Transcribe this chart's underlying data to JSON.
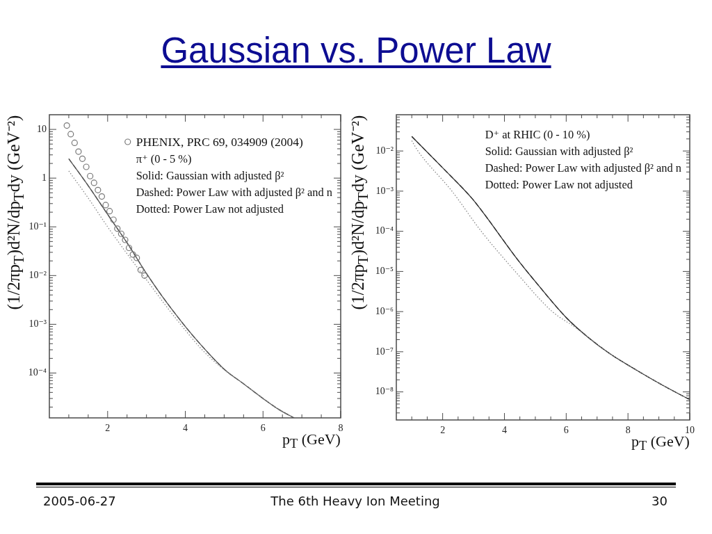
{
  "chart_data": [
    {
      "type": "line",
      "title": "Gaussian vs. Power Law",
      "xlabel": "p$_{T}$ (GeV)",
      "ylabel": "(1/2πp$_{T}$)d²N/dp$_{T}$dy (GeV⁻²)",
      "log": true,
      "legend": "top right",
      "xlim": [
        0.5,
        8
      ],
      "ylim": [
        1.2e-05,
        20
      ],
      "xticks": [
        {
          "value": 1,
          "label": null
        },
        {
          "value": 1.5,
          "label": null
        },
        2,
        {
          "value": 2.5,
          "label": null
        },
        {
          "value": 3,
          "label": null
        },
        {
          "value": 3.5,
          "label": null
        },
        4,
        {
          "value": 4.5,
          "label": null
        },
        {
          "value": 5,
          "label": null
        },
        {
          "value": 5.5,
          "label": null
        },
        6,
        {
          "value": 6.5,
          "label": null
        },
        {
          "value": 7,
          "label": null
        },
        {
          "value": 7.5,
          "label": null
        },
        8
      ],
      "yticks": [
        {
          "value": 2e-05,
          "label": null
        },
        {
          "value": 3e-05,
          "label": null
        },
        {
          "value": 4e-05,
          "label": null
        },
        {
          "value": 5e-05,
          "label": null
        },
        {
          "value": 6e-05,
          "label": null
        },
        {
          "value": 7e-05,
          "label": null
        },
        {
          "value": 8e-05,
          "label": null
        },
        {
          "value": 9e-05,
          "label": null
        },
        {
          "value": 0.0001,
          "label": "10⁻⁴"
        },
        {
          "value": 0.0002,
          "label": null
        },
        {
          "value": 0.0003,
          "label": null
        },
        {
          "value": 0.0004,
          "label": null
        },
        {
          "value": 0.0005,
          "label": null
        },
        {
          "value": 0.0006,
          "label": null
        },
        {
          "value": 0.0007,
          "label": null
        },
        {
          "value": 0.0008,
          "label": null
        },
        {
          "value": 0.0009,
          "label": null
        },
        {
          "value": 0.001,
          "label": "10⁻³"
        },
        {
          "value": 0.002,
          "label": null
        },
        {
          "value": 0.003,
          "label": null
        },
        {
          "value": 0.004,
          "label": null
        },
        {
          "value": 0.005,
          "label": null
        },
        {
          "value": 0.006,
          "label": null
        },
        {
          "value": 0.007,
          "label": null
        },
        {
          "value": 0.008,
          "label": null
        },
        {
          "value": 0.009,
          "label": null
        },
        {
          "value": 0.01,
          "label": "10⁻²"
        },
        {
          "value": 0.02,
          "label": null
        },
        {
          "value": 0.03,
          "label": null
        },
        {
          "value": 0.04,
          "label": null
        },
        {
          "value": 0.05,
          "label": null
        },
        {
          "value": 0.06,
          "label": null
        },
        {
          "value": 0.07,
          "label": null
        },
        {
          "value": 0.08,
          "label": null
        },
        {
          "value": 0.09,
          "label": null
        },
        {
          "value": 0.1,
          "label": "10⁻¹"
        },
        {
          "value": 0.2,
          "label": null
        },
        {
          "value": 0.3,
          "label": null
        },
        {
          "value": 0.4,
          "label": null
        },
        {
          "value": 0.5,
          "label": null
        },
        {
          "value": 0.6,
          "label": null
        },
        {
          "value": 0.7,
          "label": null
        },
        {
          "value": 0.8,
          "label": null
        },
        {
          "value": 0.9,
          "label": null
        },
        1,
        {
          "value": 2,
          "label": null
        },
        {
          "value": 3,
          "label": null
        },
        {
          "value": 4,
          "label": null
        },
        {
          "value": 5,
          "label": null
        },
        {
          "value": 6,
          "label": null
        },
        {
          "value": 7,
          "label": null
        },
        {
          "value": 8,
          "label": null
        },
        {
          "value": 9,
          "label": null
        },
        10
      ],
      "annotations": [
        "π⁺ (0 - 5 %)",
        "Solid: Gaussian with adjusted β²",
        "Dashed: Power Law with adjusted β² and n",
        "Dotted: Power Law not adjusted"
      ],
      "series": [
        {
          "type": "scatter",
          "name": "PHENIX, PRC 69, 034909 (2004)",
          "color": "#777777",
          "marker": "circle",
          "x": [
            0.95,
            1.05,
            1.15,
            1.25,
            1.35,
            1.45,
            1.55,
            1.65,
            1.75,
            1.85,
            1.95,
            2.05,
            2.15,
            2.25,
            2.35,
            2.45,
            2.55,
            2.65,
            2.75,
            2.85,
            2.95
          ],
          "values": [
            12,
            8.0,
            5.3,
            3.5,
            2.5,
            1.7,
            1.1,
            0.8,
            0.57,
            0.42,
            0.28,
            0.21,
            0.14,
            0.092,
            0.072,
            0.054,
            0.037,
            0.027,
            0.023,
            0.013,
            0.01
          ]
        },
        {
          "type": "line",
          "color": "#555555",
          "line_style": "solid",
          "x": [
            1.0,
            1.5,
            2.0,
            2.5,
            3.0,
            3.4,
            4.0,
            4.4,
            5.0,
            5.5,
            6.0,
            6.4,
            6.8
          ],
          "values": [
            2.5,
            0.7,
            0.18,
            0.047,
            0.011,
            0.0038,
            0.0009,
            0.00038,
            0.00012,
            6e-05,
            3e-05,
            1.8e-05,
            1.2e-05
          ]
        },
        {
          "type": "line",
          "color": "#555555",
          "line_style": "dashed",
          "x": [
            1.0,
            1.5,
            2.0,
            2.5,
            3.0,
            3.4,
            4.0,
            4.4,
            5.0,
            5.5,
            6.0,
            6.4,
            6.8
          ],
          "values": [
            2.5,
            0.7,
            0.18,
            0.047,
            0.011,
            0.0038,
            0.0009,
            0.00038,
            0.00012,
            6e-05,
            3e-05,
            1.8e-05,
            1.2e-05
          ]
        },
        {
          "type": "line",
          "color": "#8a8a8a",
          "line_style": "dotted",
          "x": [
            1.0,
            1.5,
            2.0,
            2.5,
            3.0,
            3.5,
            3.9,
            4.4,
            4.9,
            5.5,
            6.0,
            6.4,
            6.8
          ],
          "values": [
            1.4,
            0.39,
            0.1,
            0.028,
            0.0082,
            0.0024,
            0.00095,
            0.00032,
            0.000135,
            6e-05,
            3e-05,
            1.8e-05,
            1.2e-05
          ]
        }
      ]
    },
    {
      "type": "line",
      "xlabel": "p$_{T}$ (GeV)",
      "ylabel": "(1/2πp$_{T}$)d²N/dp$_{T}$dy (GeV⁻²)",
      "log": true,
      "xlim": [
        0.5,
        10
      ],
      "ylim": [
        2e-09,
        0.08
      ],
      "xticks": [
        {
          "value": 1,
          "label": null
        },
        {
          "value": 1.5,
          "label": null
        },
        2,
        {
          "value": 2.5,
          "label": null
        },
        {
          "value": 3,
          "label": null
        },
        {
          "value": 3.5,
          "label": null
        },
        4,
        {
          "value": 4.5,
          "label": null
        },
        {
          "value": 5,
          "label": null
        },
        {
          "value": 5.5,
          "label": null
        },
        6,
        {
          "value": 6.5,
          "label": null
        },
        {
          "value": 7,
          "label": null
        },
        {
          "value": 7.5,
          "label": null
        },
        8,
        {
          "value": 8.5,
          "label": null
        },
        {
          "value": 9,
          "label": null
        },
        {
          "value": 9.5,
          "label": null
        },
        10
      ],
      "yticks": [
        {
          "value": 3e-09,
          "label": null
        },
        {
          "value": 4e-09,
          "label": null
        },
        {
          "value": 5e-09,
          "label": null
        },
        {
          "value": 6e-09,
          "label": null
        },
        {
          "value": 7e-09,
          "label": null
        },
        {
          "value": 8e-09,
          "label": null
        },
        {
          "value": 9e-09,
          "label": null
        },
        {
          "value": 1e-08,
          "label": "10⁻⁸"
        },
        {
          "value": 2e-08,
          "label": null
        },
        {
          "value": 3e-08,
          "label": null
        },
        {
          "value": 4e-08,
          "label": null
        },
        {
          "value": 5e-08,
          "label": null
        },
        {
          "value": 6e-08,
          "label": null
        },
        {
          "value": 7e-08,
          "label": null
        },
        {
          "value": 8e-08,
          "label": null
        },
        {
          "value": 9e-08,
          "label": null
        },
        {
          "value": 1e-07,
          "label": "10⁻⁷"
        },
        {
          "value": 2e-07,
          "label": null
        },
        {
          "value": 3e-07,
          "label": null
        },
        {
          "value": 4e-07,
          "label": null
        },
        {
          "value": 5e-07,
          "label": null
        },
        {
          "value": 6e-07,
          "label": null
        },
        {
          "value": 7e-07,
          "label": null
        },
        {
          "value": 8e-07,
          "label": null
        },
        {
          "value": 9e-07,
          "label": null
        },
        {
          "value": 1e-06,
          "label": "10⁻⁶"
        },
        {
          "value": 2e-06,
          "label": null
        },
        {
          "value": 3e-06,
          "label": null
        },
        {
          "value": 4e-06,
          "label": null
        },
        {
          "value": 5e-06,
          "label": null
        },
        {
          "value": 6e-06,
          "label": null
        },
        {
          "value": 7e-06,
          "label": null
        },
        {
          "value": 8e-06,
          "label": null
        },
        {
          "value": 9e-06,
          "label": null
        },
        {
          "value": 1e-05,
          "label": "10⁻⁵"
        },
        {
          "value": 2e-05,
          "label": null
        },
        {
          "value": 3e-05,
          "label": null
        },
        {
          "value": 4e-05,
          "label": null
        },
        {
          "value": 5e-05,
          "label": null
        },
        {
          "value": 6e-05,
          "label": null
        },
        {
          "value": 7e-05,
          "label": null
        },
        {
          "value": 8e-05,
          "label": null
        },
        {
          "value": 9e-05,
          "label": null
        },
        {
          "value": 0.0001,
          "label": "10⁻⁴"
        },
        {
          "value": 0.0002,
          "label": null
        },
        {
          "value": 0.0003,
          "label": null
        },
        {
          "value": 0.0004,
          "label": null
        },
        {
          "value": 0.0005,
          "label": null
        },
        {
          "value": 0.0006,
          "label": null
        },
        {
          "value": 0.0007,
          "label": null
        },
        {
          "value": 0.0008,
          "label": null
        },
        {
          "value": 0.0009,
          "label": null
        },
        {
          "value": 0.001,
          "label": "10⁻³"
        },
        {
          "value": 0.002,
          "label": null
        },
        {
          "value": 0.003,
          "label": null
        },
        {
          "value": 0.004,
          "label": null
        },
        {
          "value": 0.005,
          "label": null
        },
        {
          "value": 0.006,
          "label": null
        },
        {
          "value": 0.007,
          "label": null
        },
        {
          "value": 0.008,
          "label": null
        },
        {
          "value": 0.009,
          "label": null
        },
        {
          "value": 0.01,
          "label": "10⁻²"
        },
        {
          "value": 0.02,
          "label": null
        },
        {
          "value": 0.03,
          "label": null
        },
        {
          "value": 0.04,
          "label": null
        },
        {
          "value": 0.05,
          "label": null
        },
        {
          "value": 0.06,
          "label": null
        },
        {
          "value": 0.07,
          "label": null
        }
      ],
      "annotations": [
        "D⁺ at RHIC (0 - 10 %)",
        "Solid: Gaussian with adjusted β²",
        "Dashed: Power Law with adjusted β² and n",
        "Dotted: Power Law not adjusted"
      ],
      "series": [
        {
          "type": "line",
          "color": "#333333",
          "line_style": "solid",
          "x": [
            1.0,
            2.0,
            2.95,
            3.3,
            4.4,
            5.0,
            6.0,
            6.65,
            7.4,
            8.3,
            9.1,
            10.0
          ],
          "values": [
            0.023,
            0.0038,
            0.00066,
            0.0003,
            2.1e-05,
            5.6e-06,
            7.1e-07,
            2.5e-07,
            9.1e-08,
            3.4e-08,
            1.5e-08,
            6.4e-09
          ]
        },
        {
          "type": "line",
          "color": "#333333",
          "line_style": "dashed",
          "x": [
            1.0,
            2.0,
            2.95,
            3.3,
            4.4,
            5.0,
            6.0,
            6.65,
            7.4,
            8.3,
            9.1,
            10.0
          ],
          "values": [
            0.023,
            0.0038,
            0.00066,
            0.0003,
            2.1e-05,
            5.6e-06,
            7.1e-07,
            2.5e-07,
            9.1e-08,
            3.4e-08,
            1.5e-08,
            6.4e-09
          ]
        },
        {
          "type": "line",
          "color": "#888888",
          "line_style": "dotted",
          "x": [
            1.0,
            1.2,
            2.3,
            3.25,
            4.35,
            5.55,
            6.3,
            7.0,
            7.4,
            8.3,
            9.1,
            10.0
          ],
          "values": [
            0.018,
            0.01,
            0.001,
            0.0001,
            1e-05,
            1e-06,
            4e-07,
            1.5e-07,
            9.1e-08,
            3.4e-08,
            1.5e-08,
            6.4e-09
          ]
        }
      ]
    },
    {
      "type": "other",
      "annotations": [
        "2005-06-27",
        "The 6th Heavy Ion Meeting",
        "30"
      ]
    }
  ]
}
